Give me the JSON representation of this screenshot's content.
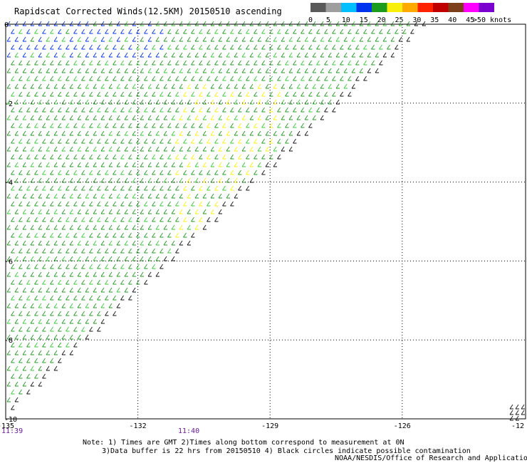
{
  "title": "Rapidscat Corrected Winds(12.5KM) 20150510 ascending",
  "colorbar": {
    "ticks": [
      "0",
      "5",
      "10",
      "15",
      "20",
      "25",
      "30",
      "35",
      "40",
      "45",
      ">50 knots"
    ],
    "colors": [
      "#5a5a5a",
      "#9e9e9e",
      "#00bfff",
      "#0033ee",
      "#1c9c1c",
      "#f8f00a",
      "#ffaa00",
      "#ff2200",
      "#c00000",
      "#7b3f1a",
      "#ff00ff",
      "#7a00d0"
    ]
  },
  "chart_data": {
    "type": "wind barb map",
    "x_ticks": [
      "-135",
      "-132",
      "-129",
      "-126",
      "-123",
      "-12"
    ],
    "y_ticks": [
      "0",
      "-2",
      "-4",
      "-6",
      "-8",
      "-10"
    ],
    "xlim": [
      -135,
      -123.2
    ],
    "ylim": [
      -10,
      0
    ],
    "grid": true,
    "swath_edge": [
      [
        -135,
        -10
      ],
      [
        -125.4,
        0
      ]
    ],
    "units": "knots",
    "speed_regions": [
      {
        "speed_range": "10-15",
        "color": "#0033ee",
        "area": "northwest corner, lon -135 to -131.5, lat 0 to -1"
      },
      {
        "speed_range": "15-20",
        "color": "#1c9c1c",
        "area": "most of swath"
      },
      {
        "speed_range": "20-25",
        "color": "#f8f00a",
        "area": "scattered patches near lon -131 to -129, lat -1.5 to -6"
      }
    ]
  },
  "time_labels": [
    "11:39",
    "11:40"
  ],
  "notes": [
    "Note: 1) Times are GMT 2)Times along bottom correspond to measurement at 0N",
    "3)Data buffer is 22 hrs from 20150510 4) Black circles indicate possible contamination"
  ],
  "credit": "NOAA/NESDIS/Office of Research and Applications"
}
